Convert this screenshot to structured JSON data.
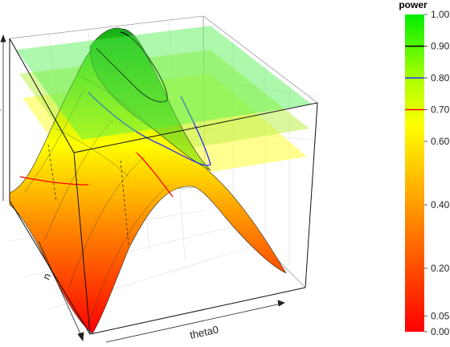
{
  "chart_data": {
    "type": "surface",
    "axes": {
      "x": {
        "label": "theta0"
      },
      "y": {
        "label": "n"
      },
      "z": {
        "label": "power",
        "range": [
          0,
          1
        ]
      }
    },
    "reference_planes": [
      0.7,
      0.8,
      0.9
    ],
    "contour_levels": [
      {
        "level": 0.7,
        "color": "#ff0000"
      },
      {
        "level": 0.8,
        "color": "#2a2aff"
      },
      {
        "level": 0.9,
        "color": "#000000"
      }
    ],
    "colorbar": {
      "title": "power",
      "range": [
        0,
        1
      ],
      "ticks": [
        "0.00",
        "0.05",
        "0.20",
        "0.40",
        "0.60",
        "0.70",
        "0.80",
        "0.90",
        "1.00"
      ],
      "tick_values": [
        0,
        0.05,
        0.2,
        0.4,
        0.6,
        0.7,
        0.8,
        0.9,
        1.0
      ],
      "gradient": [
        {
          "at": 0.0,
          "color": "#ff0000"
        },
        {
          "at": 0.35,
          "color": "#ff8800"
        },
        {
          "at": 0.65,
          "color": "#ffff00"
        },
        {
          "at": 0.8,
          "color": "#aaff00"
        },
        {
          "at": 1.0,
          "color": "#00ee00"
        }
      ],
      "markers": [
        {
          "value": 0.7,
          "color": "#ff0000"
        },
        {
          "value": 0.8,
          "color": "#2a2aff"
        },
        {
          "value": 0.9,
          "color": "#000000"
        }
      ]
    }
  }
}
